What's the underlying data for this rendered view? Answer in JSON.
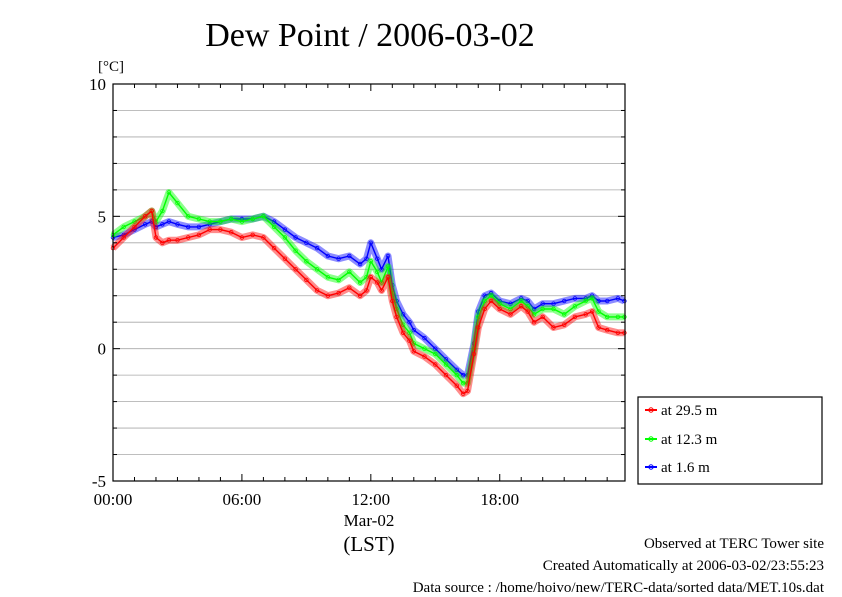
{
  "chart_data": {
    "type": "line",
    "title": "Dew Point / 2006-03-02",
    "ylabel": "[°C]",
    "xlabel": "(LST)",
    "x_unit": "hour of day (LST)",
    "xlim": [
      0,
      23.83
    ],
    "ylim": [
      -5,
      10
    ],
    "y_ticks": [
      "10",
      "5",
      "0",
      "-5"
    ],
    "y_tick_values": [
      10,
      5,
      0,
      -5
    ],
    "x_ticks": [
      "00:00",
      "06:00",
      "12:00",
      "18:00"
    ],
    "x_tick_values": [
      0,
      6,
      12,
      18
    ],
    "x_date_label": "Mar-02",
    "grid": true,
    "legend_position": "right-bottom",
    "series": [
      {
        "name": "at 29.5 m",
        "color": "#ff0000",
        "x": [
          0,
          0.5,
          1,
          1.5,
          1.8,
          2,
          2.3,
          2.6,
          3,
          3.5,
          4,
          4.5,
          5,
          5.5,
          6,
          6.5,
          7,
          7.5,
          8,
          8.5,
          9,
          9.5,
          10,
          10.5,
          11,
          11.5,
          11.8,
          12,
          12.3,
          12.5,
          12.8,
          13,
          13.2,
          13.5,
          13.8,
          14,
          14.5,
          15,
          15.5,
          16,
          16.3,
          16.5,
          16.8,
          17,
          17.3,
          17.6,
          18,
          18.5,
          19,
          19.3,
          19.6,
          20,
          20.5,
          21,
          21.5,
          22,
          22.3,
          22.6,
          23,
          23.5,
          23.8
        ],
        "y": [
          3.8,
          4.2,
          4.6,
          5.0,
          5.2,
          4.2,
          4.0,
          4.1,
          4.1,
          4.2,
          4.3,
          4.5,
          4.5,
          4.4,
          4.2,
          4.3,
          4.2,
          3.8,
          3.4,
          3.0,
          2.6,
          2.2,
          2.0,
          2.1,
          2.3,
          2.0,
          2.2,
          2.7,
          2.5,
          2.2,
          2.7,
          1.8,
          1.2,
          0.6,
          0.3,
          -0.1,
          -0.3,
          -0.6,
          -1.0,
          -1.4,
          -1.7,
          -1.6,
          -0.2,
          0.8,
          1.5,
          1.8,
          1.5,
          1.3,
          1.6,
          1.4,
          1.0,
          1.2,
          0.8,
          0.9,
          1.2,
          1.3,
          1.4,
          0.8,
          0.7,
          0.6,
          0.6
        ]
      },
      {
        "name": "at 12.3 m",
        "color": "#00ff00",
        "x": [
          0,
          0.5,
          1,
          1.5,
          1.8,
          2,
          2.3,
          2.6,
          3,
          3.5,
          4,
          4.5,
          5,
          5.5,
          6,
          6.5,
          7,
          7.5,
          8,
          8.5,
          9,
          9.5,
          10,
          10.5,
          11,
          11.5,
          11.8,
          12,
          12.3,
          12.5,
          12.8,
          13,
          13.2,
          13.5,
          13.8,
          14,
          14.5,
          15,
          15.5,
          16,
          16.3,
          16.5,
          16.8,
          17,
          17.3,
          17.6,
          18,
          18.5,
          19,
          19.3,
          19.6,
          20,
          20.5,
          21,
          21.5,
          22,
          22.3,
          22.6,
          23,
          23.5,
          23.8
        ],
        "y": [
          4.3,
          4.6,
          4.8,
          5.0,
          5.2,
          4.8,
          5.2,
          5.9,
          5.5,
          5.0,
          4.9,
          4.8,
          4.8,
          4.9,
          4.8,
          4.9,
          5.0,
          4.6,
          4.2,
          3.7,
          3.3,
          3.0,
          2.7,
          2.6,
          2.9,
          2.5,
          2.7,
          3.3,
          2.9,
          2.5,
          3.1,
          2.1,
          1.5,
          0.9,
          0.6,
          0.2,
          0.0,
          -0.2,
          -0.6,
          -1.0,
          -1.3,
          -1.3,
          0.0,
          1.2,
          1.8,
          2.0,
          1.7,
          1.5,
          1.8,
          1.6,
          1.3,
          1.5,
          1.5,
          1.3,
          1.6,
          1.8,
          1.9,
          1.4,
          1.2,
          1.2,
          1.2
        ]
      },
      {
        "name": "at 1.6 m",
        "color": "#0000ff",
        "x": [
          0,
          0.5,
          1,
          1.5,
          1.8,
          2,
          2.3,
          2.6,
          3,
          3.5,
          4,
          4.5,
          5,
          5.5,
          6,
          6.5,
          7,
          7.5,
          8,
          8.5,
          9,
          9.5,
          10,
          10.5,
          11,
          11.5,
          11.8,
          12,
          12.3,
          12.5,
          12.8,
          13,
          13.2,
          13.5,
          13.8,
          14,
          14.5,
          15,
          15.5,
          16,
          16.3,
          16.5,
          16.8,
          17,
          17.3,
          17.6,
          18,
          18.5,
          19,
          19.3,
          19.6,
          20,
          20.5,
          21,
          21.5,
          22,
          22.3,
          22.6,
          23,
          23.5,
          23.8
        ],
        "y": [
          4.2,
          4.3,
          4.5,
          4.7,
          4.8,
          4.6,
          4.7,
          4.8,
          4.7,
          4.6,
          4.6,
          4.7,
          4.8,
          4.9,
          4.9,
          4.9,
          5.0,
          4.8,
          4.5,
          4.2,
          4.0,
          3.8,
          3.5,
          3.4,
          3.5,
          3.2,
          3.4,
          4.0,
          3.4,
          3.0,
          3.5,
          2.4,
          1.8,
          1.3,
          1.0,
          0.7,
          0.4,
          0.0,
          -0.4,
          -0.8,
          -1.0,
          -1.0,
          0.2,
          1.4,
          2.0,
          2.1,
          1.8,
          1.7,
          1.9,
          1.8,
          1.5,
          1.7,
          1.7,
          1.8,
          1.9,
          1.9,
          2.0,
          1.8,
          1.8,
          1.9,
          1.8
        ]
      }
    ]
  },
  "footer": {
    "line1": "Observed at TERC Tower site",
    "line2": "Created Automatically at 2006-03-02/23:55:23",
    "line3": "Data source : /home/hoivo/new/TERC-data/sorted  data/MET.10s.dat"
  }
}
